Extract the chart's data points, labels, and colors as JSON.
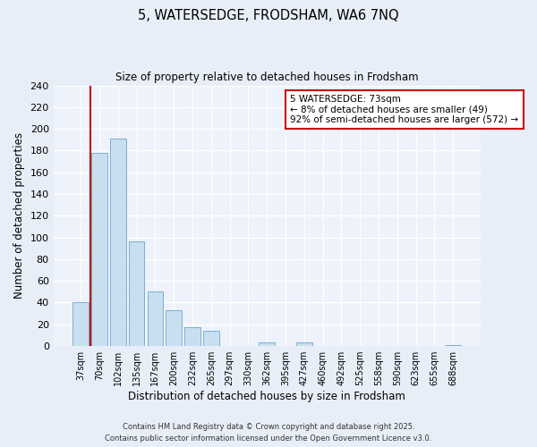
{
  "title": "5, WATERSEDGE, FRODSHAM, WA6 7NQ",
  "subtitle": "Size of property relative to detached houses in Frodsham",
  "xlabel": "Distribution of detached houses by size in Frodsham",
  "ylabel": "Number of detached properties",
  "bar_labels": [
    "37sqm",
    "70sqm",
    "102sqm",
    "135sqm",
    "167sqm",
    "200sqm",
    "232sqm",
    "265sqm",
    "297sqm",
    "330sqm",
    "362sqm",
    "395sqm",
    "427sqm",
    "460sqm",
    "492sqm",
    "525sqm",
    "558sqm",
    "590sqm",
    "623sqm",
    "655sqm",
    "688sqm"
  ],
  "bar_values": [
    40,
    178,
    191,
    96,
    50,
    33,
    17,
    14,
    0,
    0,
    3,
    0,
    3,
    0,
    0,
    0,
    0,
    0,
    0,
    0,
    1
  ],
  "bar_color": "#c8dff0",
  "bar_edge_color": "#7bafd4",
  "property_line_label": "5 WATERSEDGE: 73sqm",
  "annotation_line1": "← 8% of detached houses are smaller (49)",
  "annotation_line2": "92% of semi-detached houses are larger (572) →",
  "annotation_box_color": "#ffffff",
  "annotation_box_edge": "#cc0000",
  "property_line_color": "#cc0000",
  "ylim": [
    0,
    240
  ],
  "yticks": [
    0,
    20,
    40,
    60,
    80,
    100,
    120,
    140,
    160,
    180,
    200,
    220,
    240
  ],
  "footer1": "Contains HM Land Registry data © Crown copyright and database right 2025.",
  "footer2": "Contains public sector information licensed under the Open Government Licence v3.0.",
  "bg_color": "#e8eef8",
  "plot_bg_color": "#eef2fa"
}
